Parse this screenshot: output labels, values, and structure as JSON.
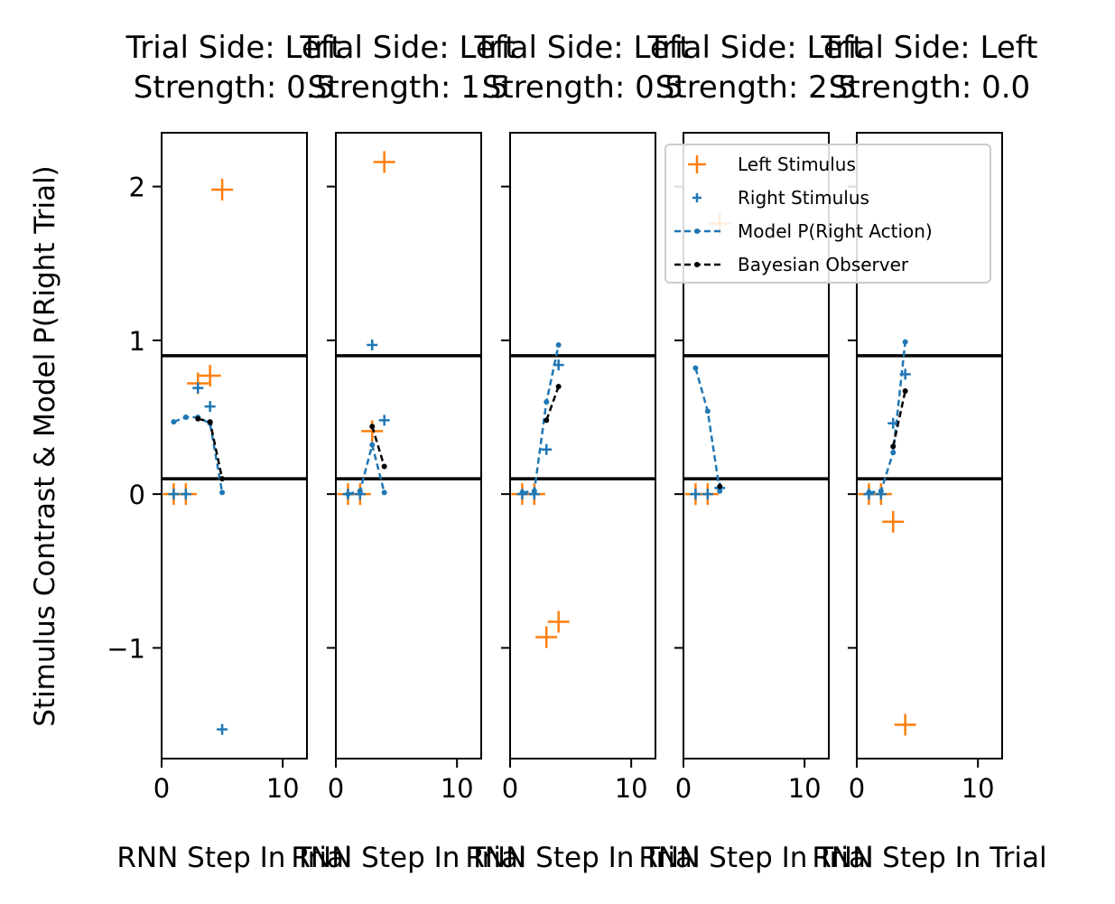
{
  "figure": {
    "ylabel": "Stimulus Contrast & Model P(Right Trial)"
  },
  "legend": {
    "entries": [
      {
        "label": "Left Stimulus",
        "color": "#ff7f0e",
        "marker": "plus-large"
      },
      {
        "label": "Right Stimulus",
        "color": "#1f77b4",
        "marker": "plus-small"
      },
      {
        "label": "Model P(Right Action)",
        "color": "#1f77b4",
        "line": "dashed-dot"
      },
      {
        "label": "Bayesian Observer",
        "color": "#000000",
        "line": "dashed-dot"
      }
    ]
  },
  "chart_data": [
    {
      "type": "line",
      "title": "Trial Side: Left\nStrength: 0.5",
      "xlabel": "RNN Step In Trial",
      "xlim": [
        0,
        12
      ],
      "ylim": [
        -1.72,
        2.35
      ],
      "xticks": [
        0,
        10
      ],
      "yticks": [
        -1,
        0,
        1,
        2
      ],
      "hlines": [
        0.1,
        0.9
      ],
      "series": [
        {
          "name": "Left Stimulus",
          "x": [
            1,
            2,
            3,
            4,
            5
          ],
          "y": [
            0.0,
            0.0,
            0.72,
            0.77,
            1.98
          ]
        },
        {
          "name": "Right Stimulus",
          "x": [
            1,
            2,
            3,
            4,
            5
          ],
          "y": [
            0.0,
            0.0,
            0.69,
            0.57,
            -1.53
          ]
        },
        {
          "name": "Model P(Right Action)",
          "x": [
            1,
            2,
            3,
            4,
            5
          ],
          "y": [
            0.47,
            0.5,
            0.5,
            0.46,
            0.01
          ]
        },
        {
          "name": "Bayesian Observer",
          "x": [
            3,
            4,
            5
          ],
          "y": [
            0.49,
            0.47,
            0.1
          ]
        }
      ]
    },
    {
      "type": "line",
      "title": "Trial Side: Left\nStrength: 1.5",
      "xlabel": "RNN Step In Trial",
      "xlim": [
        0,
        12
      ],
      "ylim": [
        -1.72,
        2.35
      ],
      "xticks": [
        0,
        10
      ],
      "yticks": [
        -1,
        0,
        1,
        2
      ],
      "hlines": [
        0.1,
        0.9
      ],
      "series": [
        {
          "name": "Left Stimulus",
          "x": [
            1,
            2,
            3,
            4
          ],
          "y": [
            0.0,
            0.0,
            0.41,
            2.16
          ]
        },
        {
          "name": "Right Stimulus",
          "x": [
            1,
            2,
            3,
            4
          ],
          "y": [
            0.0,
            0.0,
            0.97,
            0.48
          ]
        },
        {
          "name": "Model P(Right Action)",
          "x": [
            1,
            2,
            3,
            4
          ],
          "y": [
            0.0,
            0.02,
            0.32,
            0.01
          ]
        },
        {
          "name": "Bayesian Observer",
          "x": [
            3,
            4
          ],
          "y": [
            0.44,
            0.18
          ]
        }
      ]
    },
    {
      "type": "line",
      "title": "Trial Side: Left\nStrength: 0.5",
      "xlabel": "RNN Step In Trial",
      "xlim": [
        0,
        12
      ],
      "ylim": [
        -1.72,
        2.35
      ],
      "xticks": [
        0,
        10
      ],
      "yticks": [
        -1,
        0,
        1,
        2
      ],
      "hlines": [
        0.1,
        0.9
      ],
      "series": [
        {
          "name": "Left Stimulus",
          "x": [
            1,
            2,
            3,
            4
          ],
          "y": [
            0.0,
            0.0,
            -0.93,
            -0.83
          ]
        },
        {
          "name": "Right Stimulus",
          "x": [
            1,
            2,
            3,
            4
          ],
          "y": [
            0.0,
            0.0,
            0.29,
            0.84
          ]
        },
        {
          "name": "Model P(Right Action)",
          "x": [
            1,
            2,
            3,
            4
          ],
          "y": [
            0.01,
            0.02,
            0.6,
            0.97
          ]
        },
        {
          "name": "Bayesian Observer",
          "x": [
            3,
            4
          ],
          "y": [
            0.48,
            0.7
          ]
        }
      ]
    },
    {
      "type": "line",
      "title": "Trial Side: Left\nStrength: 2.5",
      "xlabel": "RNN Step In Trial",
      "xlim": [
        0,
        12
      ],
      "ylim": [
        -1.72,
        2.35
      ],
      "xticks": [
        0,
        10
      ],
      "yticks": [
        -1,
        0,
        1,
        2
      ],
      "hlines": [
        0.1,
        0.9
      ],
      "series": [
        {
          "name": "Left Stimulus",
          "x": [
            1,
            2,
            3
          ],
          "y": [
            0.0,
            0.0,
            1.76
          ]
        },
        {
          "name": "Right Stimulus",
          "x": [
            1,
            2,
            3
          ],
          "y": [
            0.0,
            0.0,
            0.04
          ]
        },
        {
          "name": "Model P(Right Action)",
          "x": [
            1,
            2,
            3
          ],
          "y": [
            0.82,
            0.54,
            0.02
          ]
        },
        {
          "name": "Bayesian Observer",
          "x": [
            3
          ],
          "y": [
            0.05
          ]
        }
      ]
    },
    {
      "type": "line",
      "title": "Trial Side: Left\nStrength: 0.0",
      "xlabel": "RNN Step In Trial",
      "xlim": [
        0,
        12
      ],
      "ylim": [
        -1.72,
        2.35
      ],
      "xticks": [
        0,
        10
      ],
      "yticks": [
        -1,
        0,
        1,
        2
      ],
      "hlines": [
        0.1,
        0.9
      ],
      "series": [
        {
          "name": "Left Stimulus",
          "x": [
            1,
            2,
            3,
            4
          ],
          "y": [
            0.0,
            0.0,
            -0.18,
            -1.5
          ]
        },
        {
          "name": "Right Stimulus",
          "x": [
            1,
            2,
            3,
            4
          ],
          "y": [
            0.0,
            0.0,
            0.46,
            0.78
          ]
        },
        {
          "name": "Model P(Right Action)",
          "x": [
            1,
            2,
            3,
            4
          ],
          "y": [
            0.01,
            0.02,
            0.27,
            0.99
          ]
        },
        {
          "name": "Bayesian Observer",
          "x": [
            3,
            4
          ],
          "y": [
            0.31,
            0.67
          ]
        }
      ]
    }
  ]
}
